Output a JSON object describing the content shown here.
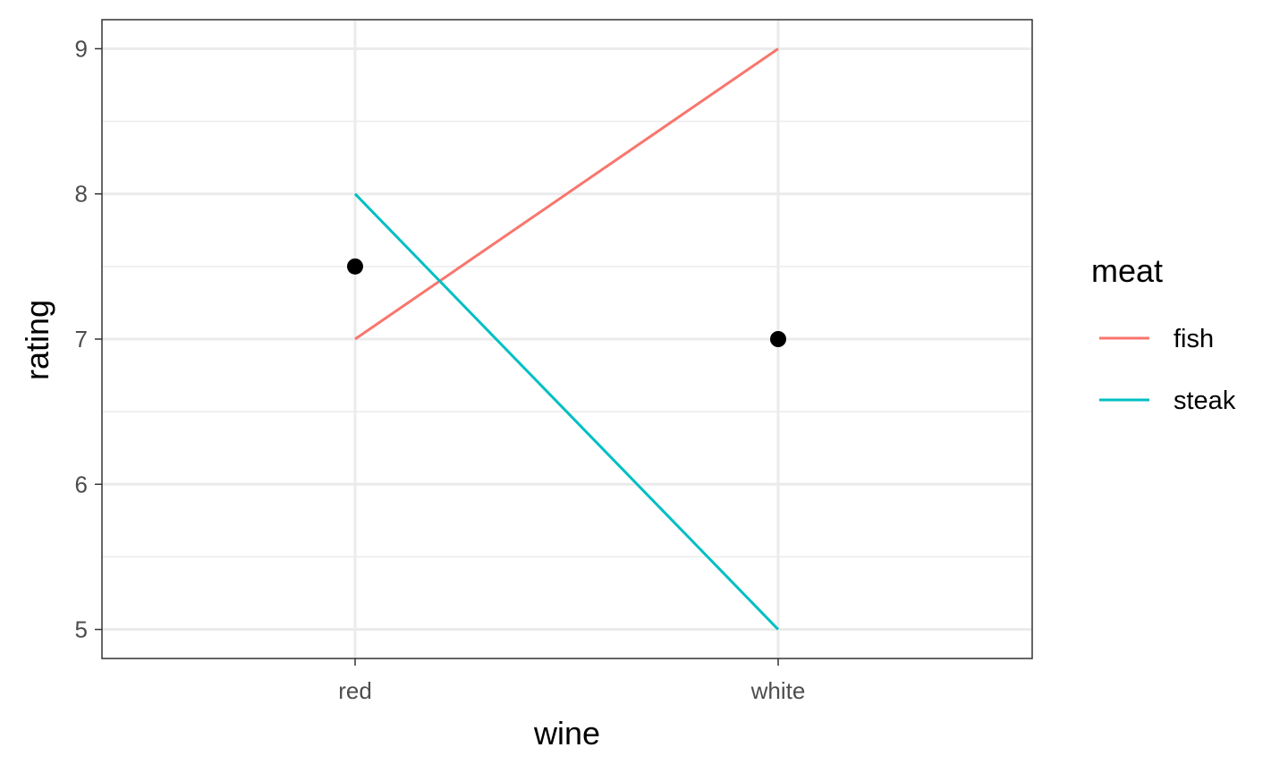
{
  "chart_data": {
    "type": "line",
    "categories": [
      "red",
      "white"
    ],
    "xlabel": "wine",
    "ylabel": "rating",
    "ylim": [
      4.8,
      9.2
    ],
    "yticks": [
      5,
      6,
      7,
      8,
      9
    ],
    "grid": true,
    "legend": {
      "title": "meat",
      "position": "right"
    },
    "series": [
      {
        "name": "fish",
        "values": [
          7,
          9
        ],
        "color": "#F8766D"
      },
      {
        "name": "steak",
        "values": [
          8,
          5
        ],
        "color": "#00BFC4"
      }
    ],
    "points": {
      "values": [
        7.5,
        7
      ],
      "color": "#000000"
    }
  }
}
